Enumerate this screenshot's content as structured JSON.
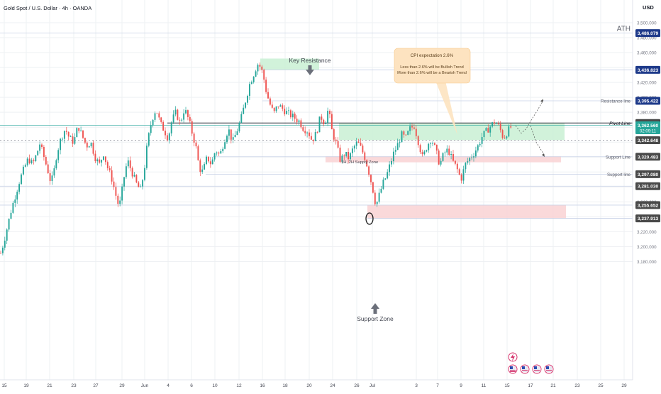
{
  "header": {
    "symbol_title": "Gold Spot / U.S. Dollar · 4h · OANDA",
    "currency": "USD"
  },
  "colors": {
    "up": "#26a69a",
    "down": "#ef5350",
    "grid": "#eef0f3",
    "level_line": "#c7d0e6",
    "badge": "#1e3a8a",
    "badge_dark": "#4a4a4a",
    "supply_zone": "#c9f0d3",
    "demand_zone": "#f9d2d3",
    "callout_bg": "#fde3c0",
    "pivot": "#2a2e39"
  },
  "chart_data": {
    "type": "candlestick",
    "title": "Gold Spot / U.S. Dollar · 4h · OANDA",
    "xlabel": "",
    "ylabel": "",
    "ylim": [
      3165,
      3515
    ],
    "y_ticks": [
      "3,500.000",
      "3,480.000",
      "3,460.000",
      "3,440.000",
      "3,420.000",
      "3,400.000",
      "3,380.000",
      "3,360.000",
      "3,340.000",
      "3,320.000",
      "3,300.000",
      "3,280.000",
      "3,260.000",
      "3,240.000",
      "3,220.000",
      "3,200.000",
      "3,180.000"
    ],
    "x_ticks": [
      "15",
      "19",
      "21",
      "23",
      "27",
      "29",
      "Jun",
      "4",
      "6",
      "10",
      "12",
      "16",
      "18",
      "20",
      "24",
      "26",
      "Jul",
      "3",
      "7",
      "9",
      "11",
      "15",
      "17",
      "21",
      "23",
      "25",
      "29"
    ],
    "price_badges": [
      {
        "label": "3,486.079",
        "value": 3486.079,
        "style": "blue"
      },
      {
        "label": "3,436.823",
        "value": 3436.823,
        "style": "blue"
      },
      {
        "label": "3,395.422",
        "value": 3395.422,
        "style": "blue"
      },
      {
        "label": "3,365.635",
        "value": 3365.635,
        "style": "dark"
      },
      {
        "label": "3,362.560",
        "sub": "02:09:11",
        "value": 3362.56,
        "style": "teal"
      },
      {
        "label": "3,342.648",
        "value": 3342.648,
        "style": "dark"
      },
      {
        "label": "3,320.483",
        "value": 3320.483,
        "style": "dark"
      },
      {
        "label": "3,297.080",
        "value": 3297.08,
        "style": "dark"
      },
      {
        "label": "3,281.030",
        "value": 3281.03,
        "style": "dark"
      },
      {
        "label": "3,255.652",
        "value": 3255.652,
        "style": "dark"
      },
      {
        "label": "3,237.913",
        "value": 3237.913,
        "style": "dark"
      }
    ],
    "level_labels": [
      {
        "text": "ATH",
        "value": 3486.079
      },
      {
        "text": "Resistance line",
        "value": 3395.422
      },
      {
        "text": "Pivot Line",
        "value": 3365.635
      },
      {
        "text": "Support Line",
        "value": 3320.483
      },
      {
        "text": "Support line",
        "value": 3297.08
      }
    ],
    "zones": [
      {
        "name": "Key Resistance",
        "top": 3452,
        "bottom": 3436.8
      },
      {
        "name": "1H, 2H Supply Zone",
        "top": 3365.6,
        "bottom": 3342.6
      },
      {
        "name": "support-line-band",
        "top": 3321,
        "bottom": 3313
      },
      {
        "name": "Support Zone",
        "top": 3255.6,
        "bottom": 3237.9
      }
    ],
    "annotations": {
      "key_resistance": "Key Resistance",
      "support_zone": "Support Zone",
      "supply_zone": "1H, 2H Supply Zone",
      "callout_title": "CPI expectation 2.6%",
      "callout_line1": "Less than 2.6% will be Bullish Trend",
      "callout_line2": "More than 2.6% will be a Bearish Trend"
    },
    "path": [
      [
        0,
        3188
      ],
      [
        5,
        3205
      ],
      [
        10,
        3225
      ],
      [
        16,
        3250
      ],
      [
        22,
        3270
      ],
      [
        28,
        3290
      ],
      [
        34,
        3305
      ],
      [
        40,
        3318
      ],
      [
        46,
        3310
      ],
      [
        52,
        3325
      ],
      [
        56,
        3338
      ],
      [
        62,
        3320
      ],
      [
        68,
        3300
      ],
      [
        72,
        3285
      ],
      [
        76,
        3300
      ],
      [
        80,
        3325
      ],
      [
        86,
        3345
      ],
      [
        92,
        3358
      ],
      [
        98,
        3345
      ],
      [
        104,
        3340
      ],
      [
        110,
        3362
      ],
      [
        116,
        3348
      ],
      [
        122,
        3335
      ],
      [
        128,
        3340
      ],
      [
        134,
        3320
      ],
      [
        140,
        3310
      ],
      [
        146,
        3325
      ],
      [
        152,
        3305
      ],
      [
        158,
        3290
      ],
      [
        163,
        3270
      ],
      [
        168,
        3252
      ],
      [
        172,
        3275
      ],
      [
        176,
        3300
      ],
      [
        180,
        3315
      ],
      [
        186,
        3300
      ],
      [
        192,
        3285
      ],
      [
        198,
        3275
      ],
      [
        203,
        3300
      ],
      [
        208,
        3340
      ],
      [
        214,
        3370
      ],
      [
        220,
        3385
      ],
      [
        226,
        3365
      ],
      [
        232,
        3355
      ],
      [
        237,
        3345
      ],
      [
        242,
        3368
      ],
      [
        248,
        3380
      ],
      [
        254,
        3365
      ],
      [
        260,
        3385
      ],
      [
        266,
        3370
      ],
      [
        271,
        3352
      ],
      [
        276,
        3335
      ],
      [
        281,
        3305
      ],
      [
        286,
        3300
      ],
      [
        292,
        3320
      ],
      [
        298,
        3310
      ],
      [
        304,
        3330
      ],
      [
        310,
        3322
      ],
      [
        316,
        3342
      ],
      [
        322,
        3358
      ],
      [
        328,
        3340
      ],
      [
        334,
        3355
      ],
      [
        340,
        3372
      ],
      [
        346,
        3395
      ],
      [
        352,
        3418
      ],
      [
        358,
        3432
      ],
      [
        363,
        3445
      ],
      [
        368,
        3440
      ],
      [
        372,
        3425
      ],
      [
        376,
        3405
      ],
      [
        381,
        3390
      ],
      [
        386,
        3378
      ],
      [
        392,
        3390
      ],
      [
        398,
        3385
      ],
      [
        404,
        3380
      ],
      [
        410,
        3376
      ],
      [
        416,
        3372
      ],
      [
        422,
        3368
      ],
      [
        428,
        3358
      ],
      [
        434,
        3355
      ],
      [
        440,
        3342
      ],
      [
        446,
        3352
      ],
      [
        452,
        3375
      ],
      [
        458,
        3365
      ],
      [
        463,
        3385
      ],
      [
        468,
        3355
      ],
      [
        474,
        3338
      ],
      [
        480,
        3315
      ],
      [
        486,
        3325
      ],
      [
        492,
        3318
      ],
      [
        498,
        3332
      ],
      [
        504,
        3340
      ],
      [
        510,
        3330
      ],
      [
        515,
        3318
      ],
      [
        520,
        3300
      ],
      [
        525,
        3280
      ],
      [
        530,
        3255
      ],
      [
        535,
        3270
      ],
      [
        540,
        3285
      ],
      [
        545,
        3295
      ],
      [
        550,
        3310
      ],
      [
        555,
        3325
      ],
      [
        560,
        3335
      ],
      [
        566,
        3350
      ],
      [
        572,
        3345
      ],
      [
        578,
        3358
      ],
      [
        584,
        3362
      ],
      [
        590,
        3340
      ],
      [
        596,
        3318
      ],
      [
        602,
        3335
      ],
      [
        608,
        3345
      ],
      [
        614,
        3330
      ],
      [
        620,
        3310
      ],
      [
        626,
        3325
      ],
      [
        632,
        3330
      ],
      [
        638,
        3315
      ],
      [
        644,
        3305
      ],
      [
        650,
        3290
      ],
      [
        656,
        3310
      ],
      [
        662,
        3318
      ],
      [
        668,
        3325
      ],
      [
        674,
        3335
      ],
      [
        680,
        3348
      ],
      [
        686,
        3355
      ],
      [
        692,
        3362
      ],
      [
        698,
        3368
      ],
      [
        704,
        3360
      ],
      [
        710,
        3345
      ],
      [
        716,
        3355
      ],
      [
        722,
        3362
      ]
    ],
    "projection": [
      [
        727,
        3362
      ],
      [
        735,
        3352
      ],
      [
        742,
        3358
      ],
      [
        748,
        3368
      ],
      [
        756,
        3380
      ],
      [
        766,
        3396
      ]
    ],
    "projection_down": [
      [
        748,
        3362
      ],
      [
        756,
        3340
      ],
      [
        768,
        3322
      ]
    ]
  }
}
